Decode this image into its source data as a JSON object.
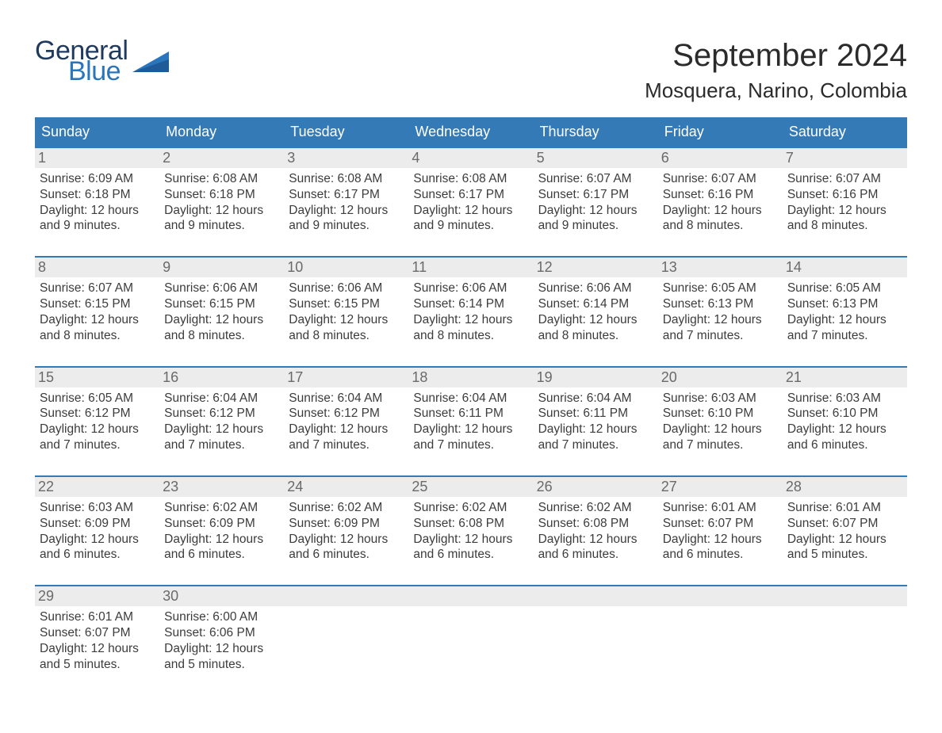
{
  "brand": {
    "word1": "General",
    "word2": "Blue"
  },
  "header": {
    "month_title": "September 2024",
    "location": "Mosquera, Narino, Colombia"
  },
  "calendar": {
    "day_names": [
      "Sunday",
      "Monday",
      "Tuesday",
      "Wednesday",
      "Thursday",
      "Friday",
      "Saturday"
    ],
    "colors": {
      "header_bg": "#347ab7",
      "header_text": "#ffffff",
      "daynum_bg": "#ececec",
      "daynum_text": "#6a6a6a",
      "rule": "#347ab7",
      "body_text": "#3c3c3c",
      "page_bg": "#ffffff"
    },
    "fonts": {
      "month_title_pt": 40,
      "location_pt": 26,
      "header_pt": 18,
      "daynum_pt": 18,
      "body_pt": 15.5
    },
    "weeks": [
      [
        {
          "n": "1",
          "sunrise": "Sunrise: 6:09 AM",
          "sunset": "Sunset: 6:18 PM",
          "daylight": "Daylight: 12 hours and 9 minutes."
        },
        {
          "n": "2",
          "sunrise": "Sunrise: 6:08 AM",
          "sunset": "Sunset: 6:18 PM",
          "daylight": "Daylight: 12 hours and 9 minutes."
        },
        {
          "n": "3",
          "sunrise": "Sunrise: 6:08 AM",
          "sunset": "Sunset: 6:17 PM",
          "daylight": "Daylight: 12 hours and 9 minutes."
        },
        {
          "n": "4",
          "sunrise": "Sunrise: 6:08 AM",
          "sunset": "Sunset: 6:17 PM",
          "daylight": "Daylight: 12 hours and 9 minutes."
        },
        {
          "n": "5",
          "sunrise": "Sunrise: 6:07 AM",
          "sunset": "Sunset: 6:17 PM",
          "daylight": "Daylight: 12 hours and 9 minutes."
        },
        {
          "n": "6",
          "sunrise": "Sunrise: 6:07 AM",
          "sunset": "Sunset: 6:16 PM",
          "daylight": "Daylight: 12 hours and 8 minutes."
        },
        {
          "n": "7",
          "sunrise": "Sunrise: 6:07 AM",
          "sunset": "Sunset: 6:16 PM",
          "daylight": "Daylight: 12 hours and 8 minutes."
        }
      ],
      [
        {
          "n": "8",
          "sunrise": "Sunrise: 6:07 AM",
          "sunset": "Sunset: 6:15 PM",
          "daylight": "Daylight: 12 hours and 8 minutes."
        },
        {
          "n": "9",
          "sunrise": "Sunrise: 6:06 AM",
          "sunset": "Sunset: 6:15 PM",
          "daylight": "Daylight: 12 hours and 8 minutes."
        },
        {
          "n": "10",
          "sunrise": "Sunrise: 6:06 AM",
          "sunset": "Sunset: 6:15 PM",
          "daylight": "Daylight: 12 hours and 8 minutes."
        },
        {
          "n": "11",
          "sunrise": "Sunrise: 6:06 AM",
          "sunset": "Sunset: 6:14 PM",
          "daylight": "Daylight: 12 hours and 8 minutes."
        },
        {
          "n": "12",
          "sunrise": "Sunrise: 6:06 AM",
          "sunset": "Sunset: 6:14 PM",
          "daylight": "Daylight: 12 hours and 8 minutes."
        },
        {
          "n": "13",
          "sunrise": "Sunrise: 6:05 AM",
          "sunset": "Sunset: 6:13 PM",
          "daylight": "Daylight: 12 hours and 7 minutes."
        },
        {
          "n": "14",
          "sunrise": "Sunrise: 6:05 AM",
          "sunset": "Sunset: 6:13 PM",
          "daylight": "Daylight: 12 hours and 7 minutes."
        }
      ],
      [
        {
          "n": "15",
          "sunrise": "Sunrise: 6:05 AM",
          "sunset": "Sunset: 6:12 PM",
          "daylight": "Daylight: 12 hours and 7 minutes."
        },
        {
          "n": "16",
          "sunrise": "Sunrise: 6:04 AM",
          "sunset": "Sunset: 6:12 PM",
          "daylight": "Daylight: 12 hours and 7 minutes."
        },
        {
          "n": "17",
          "sunrise": "Sunrise: 6:04 AM",
          "sunset": "Sunset: 6:12 PM",
          "daylight": "Daylight: 12 hours and 7 minutes."
        },
        {
          "n": "18",
          "sunrise": "Sunrise: 6:04 AM",
          "sunset": "Sunset: 6:11 PM",
          "daylight": "Daylight: 12 hours and 7 minutes."
        },
        {
          "n": "19",
          "sunrise": "Sunrise: 6:04 AM",
          "sunset": "Sunset: 6:11 PM",
          "daylight": "Daylight: 12 hours and 7 minutes."
        },
        {
          "n": "20",
          "sunrise": "Sunrise: 6:03 AM",
          "sunset": "Sunset: 6:10 PM",
          "daylight": "Daylight: 12 hours and 7 minutes."
        },
        {
          "n": "21",
          "sunrise": "Sunrise: 6:03 AM",
          "sunset": "Sunset: 6:10 PM",
          "daylight": "Daylight: 12 hours and 6 minutes."
        }
      ],
      [
        {
          "n": "22",
          "sunrise": "Sunrise: 6:03 AM",
          "sunset": "Sunset: 6:09 PM",
          "daylight": "Daylight: 12 hours and 6 minutes."
        },
        {
          "n": "23",
          "sunrise": "Sunrise: 6:02 AM",
          "sunset": "Sunset: 6:09 PM",
          "daylight": "Daylight: 12 hours and 6 minutes."
        },
        {
          "n": "24",
          "sunrise": "Sunrise: 6:02 AM",
          "sunset": "Sunset: 6:09 PM",
          "daylight": "Daylight: 12 hours and 6 minutes."
        },
        {
          "n": "25",
          "sunrise": "Sunrise: 6:02 AM",
          "sunset": "Sunset: 6:08 PM",
          "daylight": "Daylight: 12 hours and 6 minutes."
        },
        {
          "n": "26",
          "sunrise": "Sunrise: 6:02 AM",
          "sunset": "Sunset: 6:08 PM",
          "daylight": "Daylight: 12 hours and 6 minutes."
        },
        {
          "n": "27",
          "sunrise": "Sunrise: 6:01 AM",
          "sunset": "Sunset: 6:07 PM",
          "daylight": "Daylight: 12 hours and 6 minutes."
        },
        {
          "n": "28",
          "sunrise": "Sunrise: 6:01 AM",
          "sunset": "Sunset: 6:07 PM",
          "daylight": "Daylight: 12 hours and 5 minutes."
        }
      ],
      [
        {
          "n": "29",
          "sunrise": "Sunrise: 6:01 AM",
          "sunset": "Sunset: 6:07 PM",
          "daylight": "Daylight: 12 hours and 5 minutes."
        },
        {
          "n": "30",
          "sunrise": "Sunrise: 6:00 AM",
          "sunset": "Sunset: 6:06 PM",
          "daylight": "Daylight: 12 hours and 5 minutes."
        },
        {
          "n": ""
        },
        {
          "n": ""
        },
        {
          "n": ""
        },
        {
          "n": ""
        },
        {
          "n": ""
        }
      ]
    ]
  }
}
